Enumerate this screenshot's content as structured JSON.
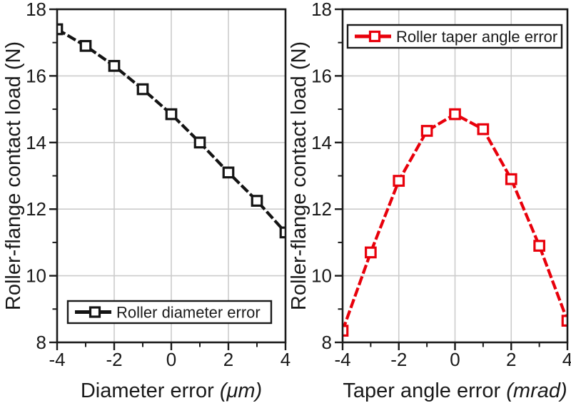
{
  "figure": {
    "background": "#ffffff",
    "text_color": "#1a1a1a",
    "grid_color": "#cccccc",
    "frame_color": "#1a1a1a"
  },
  "chart_data": [
    {
      "type": "line",
      "panel": "left",
      "title": "",
      "xlabel": "Diameter error",
      "xlabel_unit": "(μm)",
      "ylabel": "Roller-flange contact load (N)",
      "xlim": [
        -4,
        4
      ],
      "ylim": [
        8,
        18
      ],
      "xticks": [
        -4,
        -2,
        0,
        2,
        4
      ],
      "xminorticks": [
        -3,
        -1,
        1,
        3
      ],
      "yticks": [
        8,
        10,
        12,
        14,
        16,
        18
      ],
      "yminorticks": [
        9,
        11,
        13,
        15,
        17
      ],
      "grid": true,
      "legend_position": "bottom-left",
      "series": [
        {
          "name": "Roller diameter error",
          "color": "#141414",
          "marker": "open-square",
          "line_style": "dash",
          "x": [
            -4,
            -3,
            -2,
            -1,
            0,
            1,
            2,
            3,
            4
          ],
          "y": [
            17.4,
            16.9,
            16.3,
            15.6,
            14.85,
            14.0,
            13.1,
            12.25,
            11.3
          ]
        }
      ]
    },
    {
      "type": "line",
      "panel": "right",
      "title": "",
      "xlabel": "Taper angle error",
      "xlabel_unit": "(mrad)",
      "ylabel": "Roller-flange contact load (N)",
      "xlim": [
        -4,
        4
      ],
      "ylim": [
        8,
        18
      ],
      "xticks": [
        -4,
        -2,
        0,
        2,
        4
      ],
      "xminorticks": [
        -3,
        -1,
        1,
        3
      ],
      "yticks": [
        8,
        10,
        12,
        14,
        16,
        18
      ],
      "yminorticks": [
        9,
        11,
        13,
        15,
        17
      ],
      "grid": true,
      "legend_position": "top-center",
      "series": [
        {
          "name": "Roller taper angle error",
          "color": "#e8000b",
          "marker": "open-square",
          "line_style": "dash",
          "x": [
            -4,
            -3,
            -2,
            -1,
            0,
            1,
            2,
            3,
            4
          ],
          "y": [
            8.35,
            10.7,
            12.85,
            14.35,
            14.85,
            14.4,
            12.9,
            10.9,
            8.65
          ]
        }
      ]
    }
  ]
}
